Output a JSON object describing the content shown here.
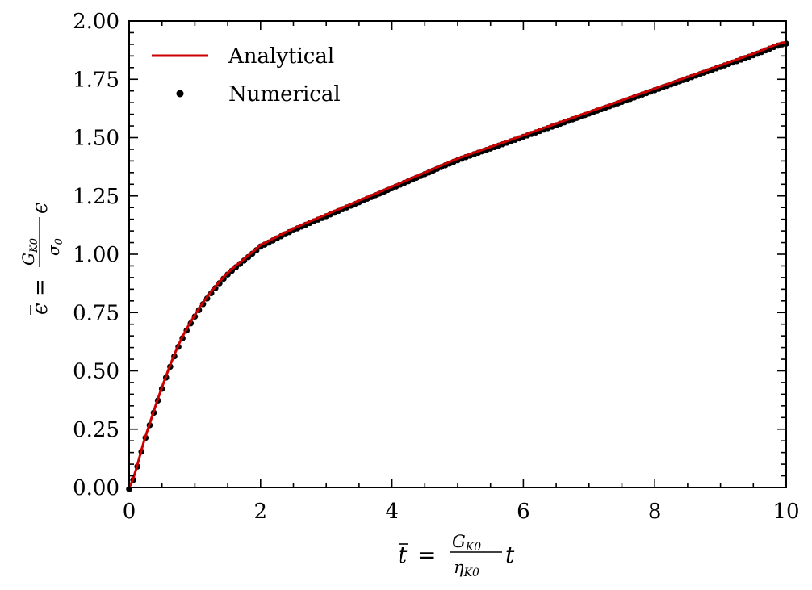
{
  "chart_data": {
    "type": "line",
    "xlim": [
      0,
      10
    ],
    "ylim": [
      0,
      2
    ],
    "x_ticks": [
      0,
      2,
      4,
      6,
      8,
      10
    ],
    "x_tick_labels": [
      "0",
      "2",
      "4",
      "6",
      "8",
      "10"
    ],
    "y_ticks": [
      0,
      0.25,
      0.5,
      0.75,
      1.0,
      1.25,
      1.5,
      1.75,
      2.0
    ],
    "y_tick_labels": [
      "0.00",
      "0.25",
      "0.50",
      "0.75",
      "1.00",
      "1.25",
      "1.50",
      "1.75",
      "2.00"
    ],
    "xlabel": "t̄ = (G_K0 / η_K0) t",
    "ylabel": "ε̄ = (G_K0 / σ0) ε",
    "grid": false,
    "legend": "top-left",
    "series": [
      {
        "name": "Analytical",
        "style": "line",
        "color": "#cc0000",
        "x": [
          0,
          0.25,
          0.5,
          0.75,
          1.0,
          1.25,
          1.5,
          1.75,
          2.0,
          2.5,
          3.0,
          3.5,
          4.0,
          4.5,
          5.0,
          5.5,
          6.0,
          6.5,
          7.0,
          7.5,
          8.0,
          8.5,
          9.0,
          9.5,
          10.0
        ],
        "y": [
          0.0,
          0.22,
          0.43,
          0.61,
          0.74,
          0.84,
          0.92,
          0.98,
          1.04,
          1.11,
          1.17,
          1.23,
          1.29,
          1.35,
          1.41,
          1.46,
          1.51,
          1.56,
          1.61,
          1.66,
          1.71,
          1.76,
          1.81,
          1.86,
          1.91
        ]
      },
      {
        "name": "Numerical",
        "style": "scatter",
        "color": "#000000",
        "x": [
          0,
          0.25,
          0.5,
          0.75,
          1.0,
          1.25,
          1.5,
          1.75,
          2.0,
          2.5,
          3.0,
          3.5,
          4.0,
          4.5,
          5.0,
          5.5,
          6.0,
          6.5,
          7.0,
          7.5,
          8.0,
          8.5,
          9.0,
          9.5,
          10.0
        ],
        "y": [
          0.0,
          0.22,
          0.43,
          0.61,
          0.74,
          0.84,
          0.92,
          0.98,
          1.04,
          1.11,
          1.17,
          1.23,
          1.29,
          1.35,
          1.41,
          1.46,
          1.51,
          1.56,
          1.61,
          1.66,
          1.71,
          1.76,
          1.81,
          1.86,
          1.91
        ]
      }
    ]
  }
}
